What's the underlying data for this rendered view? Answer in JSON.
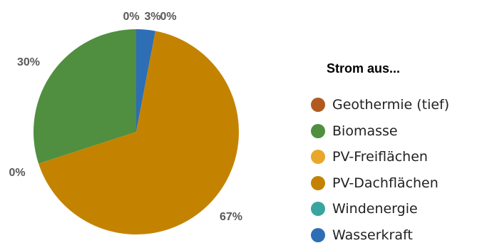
{
  "chart_data": {
    "type": "pie",
    "title": "",
    "legend_title": "Strom aus...",
    "legend_position": "right",
    "start_angle_deg": 0,
    "slices": [
      {
        "name": "Wasserkraft",
        "value": 3,
        "label": "3%",
        "color": "#2e6eb5"
      },
      {
        "name": "Windenergie",
        "value": 0,
        "label": "0%",
        "color": "#3aa5a0"
      },
      {
        "name": "PV-Dachflächen",
        "value": 67,
        "label": "67%",
        "color": "#c38300"
      },
      {
        "name": "PV-Freiflächen",
        "value": 0,
        "label": "0%",
        "color": "#e8a72b"
      },
      {
        "name": "Biomasse",
        "value": 30,
        "label": "30%",
        "color": "#4f8f3f"
      },
      {
        "name": "Geothermie (tief)",
        "value": 0,
        "label": "0%",
        "color": "#b05a1e"
      }
    ],
    "legend_order": [
      "Geothermie (tief)",
      "Biomasse",
      "PV-Freiflächen",
      "PV-Dachflächen",
      "Windenergie",
      "Wasserkraft"
    ]
  }
}
